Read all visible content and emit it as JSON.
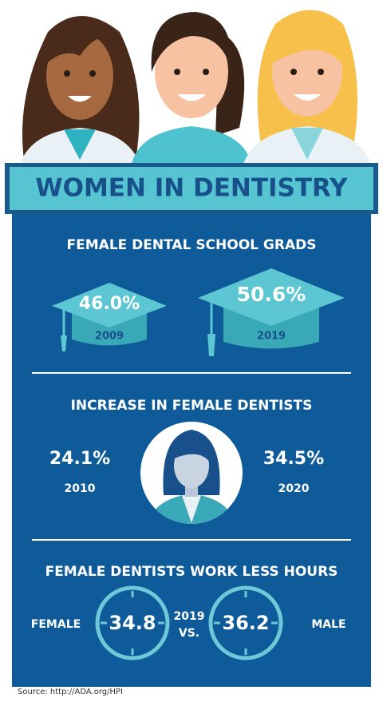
{
  "header": {
    "title": "WOMEN IN DENTISTRY"
  },
  "sections": [
    {
      "heading": "FEMALE DENTAL SCHOOL GRADS",
      "items": [
        {
          "value": "46.0%",
          "year": "2009"
        },
        {
          "value": "50.6%",
          "year": "2019"
        }
      ]
    },
    {
      "heading": "INCREASE IN FEMALE DENTISTS",
      "items": [
        {
          "value": "24.1%",
          "year": "2010"
        },
        {
          "value": "34.5%",
          "year": "2020"
        }
      ]
    },
    {
      "heading": "FEMALE DENTISTS WORK LESS HOURS",
      "items": [
        {
          "label": "FEMALE",
          "value": "34.8"
        },
        {
          "label": "MALE",
          "value": "36.2"
        }
      ],
      "comparison": {
        "year": "2019",
        "text": "VS."
      }
    }
  ],
  "source": "Source: http://ADA.org/HPI"
}
